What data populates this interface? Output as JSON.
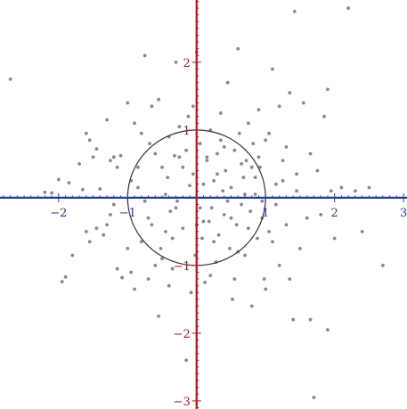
{
  "chart_data": {
    "type": "scatter",
    "title": "",
    "xlabel": "",
    "ylabel": "",
    "xlim": [
      -2.85,
      3.05
    ],
    "ylim": [
      -3.12,
      2.92
    ],
    "grid": false,
    "x_ticks": [
      -2,
      -1,
      1,
      2,
      3
    ],
    "x_tick_labels": [
      "−2",
      "−1",
      "1",
      "2",
      "3"
    ],
    "y_ticks": [
      -3,
      -2,
      -1,
      1,
      2
    ],
    "y_tick_labels": [
      "−3",
      "−2",
      "−1",
      "1",
      "2"
    ],
    "x_minor_step": 0.1,
    "y_minor_step": 0.1,
    "colors": {
      "x_axis": "#1f3f9a",
      "y_axis": "#b5121b",
      "points": "#8a8a8a",
      "circle": "#333333"
    },
    "circle": {
      "center": [
        0,
        0
      ],
      "radius": 1
    },
    "points": [
      [
        -2.7,
        1.75
      ],
      [
        -2.2,
        0.08
      ],
      [
        -2.1,
        0.07
      ],
      [
        -2.0,
        0.27
      ],
      [
        -1.95,
        -1.24
      ],
      [
        -1.9,
        -1.17
      ],
      [
        -1.85,
        0.22
      ],
      [
        -1.65,
        0.12
      ],
      [
        -1.6,
        -0.5
      ],
      [
        -1.55,
        0.85
      ],
      [
        -1.5,
        0.6
      ],
      [
        -1.45,
        0.72
      ],
      [
        -1.4,
        0.13
      ],
      [
        -1.35,
        -0.55
      ],
      [
        -1.3,
        -0.4
      ],
      [
        -1.25,
        0.55
      ],
      [
        -1.2,
        0.6
      ],
      [
        -1.15,
        0.45
      ],
      [
        -1.1,
        0.62
      ],
      [
        -1.08,
        -1.18
      ],
      [
        -1.0,
        1.4
      ],
      [
        -0.95,
        -1.1
      ],
      [
        -0.9,
        -1.35
      ],
      [
        -0.85,
        0.15
      ],
      [
        -0.8,
        -0.65
      ],
      [
        -0.75,
        2.1
      ],
      [
        -0.7,
        -0.3
      ],
      [
        -0.68,
        0.8
      ],
      [
        -0.65,
        1.35
      ],
      [
        -0.6,
        -1.0
      ],
      [
        -0.55,
        1.45
      ],
      [
        -0.52,
        -0.75
      ],
      [
        -0.5,
        0.45
      ],
      [
        -0.45,
        -0.5
      ],
      [
        -0.42,
        0.3
      ],
      [
        -0.4,
        0.9
      ],
      [
        -0.38,
        -0.2
      ],
      [
        -0.35,
        -1.05
      ],
      [
        -0.32,
        0.62
      ],
      [
        -0.3,
        2.0
      ],
      [
        -0.28,
        -0.05
      ],
      [
        -0.25,
        0.6
      ],
      [
        -0.2,
        -0.45
      ],
      [
        -0.15,
        -2.4
      ],
      [
        -0.12,
        1.2
      ],
      [
        -0.1,
        0.18
      ],
      [
        -0.08,
        -1.4
      ],
      [
        -0.05,
        0.35
      ],
      [
        -0.02,
        -0.85
      ],
      [
        0.0,
        2.15
      ],
      [
        0.05,
        0.8
      ],
      [
        0.08,
        -0.6
      ],
      [
        0.1,
        0.2
      ],
      [
        0.12,
        -1.25
      ],
      [
        0.15,
        0.55
      ],
      [
        0.18,
        -0.35
      ],
      [
        0.2,
        1.0
      ],
      [
        0.22,
        -0.15
      ],
      [
        0.25,
        0.25
      ],
      [
        0.28,
        -0.95
      ],
      [
        0.3,
        0.65
      ],
      [
        0.32,
        -0.55
      ],
      [
        0.35,
        1.25
      ],
      [
        0.38,
        0.1
      ],
      [
        0.4,
        -0.25
      ],
      [
        0.42,
        0.4
      ],
      [
        0.45,
        1.7
      ],
      [
        0.48,
        -0.75
      ],
      [
        0.5,
        0.15
      ],
      [
        0.52,
        -1.5
      ],
      [
        0.55,
        0.7
      ],
      [
        0.58,
        -0.4
      ],
      [
        0.6,
        2.2
      ],
      [
        0.62,
        0.95
      ],
      [
        0.65,
        -0.1
      ],
      [
        0.68,
        0.3
      ],
      [
        0.7,
        -0.85
      ],
      [
        0.72,
        0.55
      ],
      [
        0.75,
        1.1
      ],
      [
        0.78,
        -0.2
      ],
      [
        0.8,
        -1.6
      ],
      [
        0.82,
        0.8
      ],
      [
        0.85,
        0.05
      ],
      [
        0.88,
        -0.6
      ],
      [
        0.9,
        1.3
      ],
      [
        0.92,
        0.45
      ],
      [
        0.95,
        -0.3
      ],
      [
        0.98,
        -1.2
      ],
      [
        1.0,
        0.85
      ],
      [
        1.05,
        -0.5
      ],
      [
        1.1,
        1.9
      ],
      [
        1.15,
        0.2
      ],
      [
        1.2,
        -1.0
      ],
      [
        1.25,
        0.55
      ],
      [
        1.3,
        -0.4
      ],
      [
        1.35,
        1.55
      ],
      [
        1.4,
        -1.8
      ],
      [
        1.45,
        0.1
      ],
      [
        1.5,
        -0.75
      ],
      [
        1.55,
        1.4
      ],
      [
        1.6,
        -0.3
      ],
      [
        1.65,
        0.65
      ],
      [
        1.7,
        -2.95
      ],
      [
        1.75,
        0.4
      ],
      [
        1.8,
        -0.25
      ],
      [
        1.85,
        1.2
      ],
      [
        1.9,
        -1.95
      ],
      [
        1.95,
        0.1
      ],
      [
        2.0,
        -0.6
      ],
      [
        2.1,
        0.15
      ],
      [
        2.2,
        2.8
      ],
      [
        2.3,
        0.1
      ],
      [
        2.4,
        -0.5
      ],
      [
        2.5,
        0.15
      ],
      [
        2.7,
        -1.0
      ],
      [
        1.42,
        2.75
      ],
      [
        1.9,
        1.6
      ],
      [
        -0.9,
        1.1
      ],
      [
        -1.6,
        0.95
      ],
      [
        -1.8,
        -0.85
      ],
      [
        -1.45,
        -0.45
      ],
      [
        -1.25,
        -0.25
      ],
      [
        -1.15,
        -1.05
      ],
      [
        -0.75,
        -0.05
      ],
      [
        -0.6,
        0.65
      ],
      [
        -0.55,
        -1.75
      ],
      [
        -0.45,
        0.05
      ],
      [
        -0.25,
        1.05
      ],
      [
        -0.2,
        0.45
      ],
      [
        0.05,
        -0.15
      ],
      [
        0.15,
        0.6
      ],
      [
        0.25,
        -0.65
      ],
      [
        0.35,
        0.85
      ],
      [
        0.45,
        -0.05
      ],
      [
        0.55,
        -1.2
      ],
      [
        0.65,
        0.5
      ],
      [
        0.75,
        -0.45
      ],
      [
        0.85,
        0.3
      ],
      [
        0.95,
        -0.05
      ],
      [
        1.05,
        0.95
      ],
      [
        1.15,
        -0.1
      ],
      [
        1.25,
        0.25
      ],
      [
        1.35,
        -1.2
      ],
      [
        1.45,
        0.35
      ],
      [
        1.65,
        -1.8
      ],
      [
        -1.7,
        0.5
      ],
      [
        -1.3,
        1.15
      ],
      [
        -1.0,
        -0.75
      ],
      [
        -0.85,
        0.45
      ],
      [
        -0.65,
        -0.4
      ],
      [
        -0.35,
        -0.6
      ],
      [
        -0.15,
        0.7
      ],
      [
        0.1,
        -0.35
      ],
      [
        0.3,
        0.35
      ],
      [
        0.5,
        -0.3
      ],
      [
        0.7,
        0.05
      ],
      [
        0.9,
        0.6
      ],
      [
        1.1,
        -0.65
      ],
      [
        1.3,
        0.75
      ],
      [
        -0.05,
        1.35
      ],
      [
        0.2,
        -1.15
      ],
      [
        -0.5,
        -0.9
      ],
      [
        0.6,
        -0.8
      ],
      [
        -0.8,
        0.95
      ],
      [
        0.4,
        0.75
      ],
      [
        -1.2,
        -0.1
      ],
      [
        -0.4,
        -1.3
      ],
      [
        0.0,
        -0.4
      ],
      [
        0.8,
        0.45
      ],
      [
        -0.95,
        0.25
      ],
      [
        1.0,
        -1.35
      ],
      [
        -0.3,
        -0.15
      ],
      [
        -0.7,
        -1.2
      ],
      [
        1.2,
        1.35
      ],
      [
        -1.55,
        -0.65
      ]
    ]
  }
}
